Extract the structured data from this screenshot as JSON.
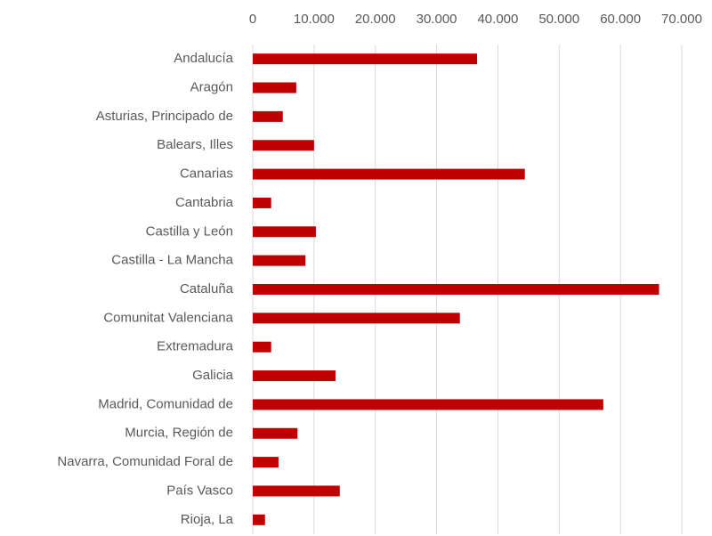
{
  "chart_data": {
    "type": "barh",
    "categories": [
      "Andalucía",
      "Aragón",
      "Asturias, Principado de",
      "Balears, Illes",
      "Canarias",
      "Cantabria",
      "Castilla y León",
      "Castilla - La Mancha",
      "Cataluña",
      "Comunitat Valenciana",
      "Extremadura",
      "Galicia",
      "Madrid, Comunidad de",
      "Murcia, Región de",
      "Navarra, Comunidad Foral de",
      "País Vasco",
      "Rioja, La"
    ],
    "values": [
      36600,
      7100,
      4900,
      10000,
      44400,
      3000,
      10300,
      8600,
      66300,
      33800,
      3000,
      13500,
      57200,
      7300,
      4200,
      14200,
      2000
    ],
    "color": "#c00000",
    "xlim": [
      0,
      70000
    ],
    "xticks": [
      0,
      {
        "value": 10000,
        "label": "10.000"
      },
      {
        "value": 20000,
        "label": "20.000"
      },
      {
        "value": 30000,
        "label": "30.000"
      },
      {
        "value": 40000,
        "label": "40.000"
      },
      {
        "value": 50000,
        "label": "50.000"
      },
      {
        "value": 60000,
        "label": "60.000"
      },
      {
        "value": 70000,
        "label": "70.000"
      }
    ],
    "grid": true
  }
}
